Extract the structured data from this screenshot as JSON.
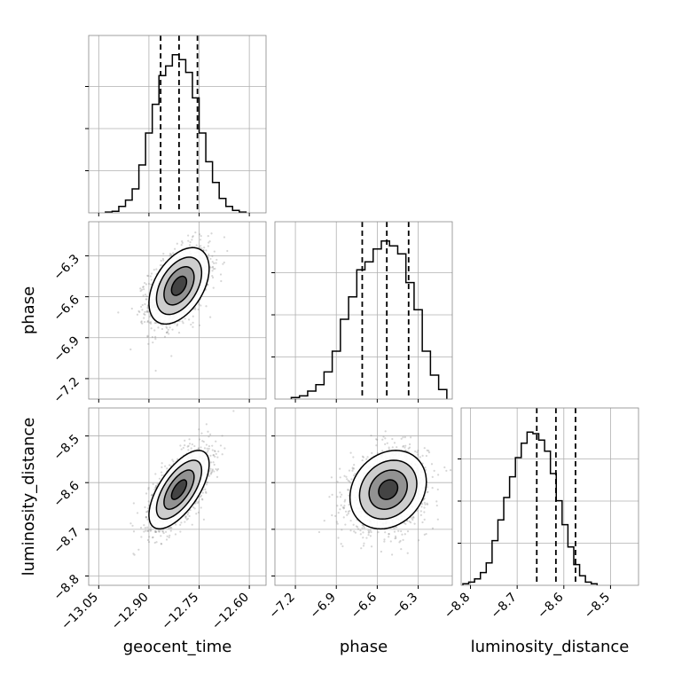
{
  "chart_data": {
    "type": "corner",
    "parameters": [
      "geocent_time",
      "phase",
      "luminosity_distance"
    ],
    "axes": {
      "geocent_time": {
        "label": "geocent_time",
        "range": [
          -13.08,
          -12.55
        ],
        "ticks": [
          -13.05,
          -12.9,
          -12.75,
          -12.6
        ],
        "tick_labels": [
          "−13.05",
          "−12.90",
          "−12.75",
          "−12.60"
        ]
      },
      "phase": {
        "label": "phase",
        "range": [
          -7.35,
          -6.05
        ],
        "ticks": [
          -7.2,
          -6.9,
          -6.6,
          -6.3
        ],
        "tick_labels": [
          "−7.2",
          "−6.9",
          "−6.6",
          "−6.3"
        ]
      },
      "luminosity_distance": {
        "label": "luminosity_distance",
        "range": [
          -8.82,
          -8.44
        ],
        "ticks": [
          -8.8,
          -8.7,
          -8.6,
          -8.5
        ],
        "tick_labels": [
          "−8.8",
          "−8.7",
          "−8.6",
          "−8.5"
        ]
      }
    },
    "stats": {
      "geocent_time": {
        "mean": -12.81,
        "std": 0.045,
        "quantiles": [
          -12.865,
          -12.81,
          -12.755
        ]
      },
      "phase": {
        "mean": -6.52,
        "std": 0.14,
        "quantiles": [
          -6.71,
          -6.53,
          -6.37
        ]
      },
      "luminosity_distance": {
        "mean": -8.615,
        "std": 0.042,
        "quantiles": [
          -8.658,
          -8.617,
          -8.575
        ]
      }
    },
    "correlations": {
      "geocent_time|phase": 0.45,
      "geocent_time|luminosity_distance": 0.65,
      "phase|luminosity_distance": 0.2
    },
    "histograms": {
      "geocent_time": {
        "bin_width": 0.02,
        "bins": [
          [
            -13.02,
            0.005
          ],
          [
            -13.0,
            0.01
          ],
          [
            -12.98,
            0.04
          ],
          [
            -12.96,
            0.08
          ],
          [
            -12.94,
            0.15
          ],
          [
            -12.92,
            0.3
          ],
          [
            -12.9,
            0.5
          ],
          [
            -12.88,
            0.68
          ],
          [
            -12.86,
            0.86
          ],
          [
            -12.84,
            0.92
          ],
          [
            -12.82,
            0.99
          ],
          [
            -12.8,
            0.96
          ],
          [
            -12.78,
            0.88
          ],
          [
            -12.76,
            0.72
          ],
          [
            -12.74,
            0.5
          ],
          [
            -12.72,
            0.32
          ],
          [
            -12.7,
            0.19
          ],
          [
            -12.68,
            0.09
          ],
          [
            -12.66,
            0.04
          ],
          [
            -12.64,
            0.015
          ],
          [
            -12.62,
            0.005
          ]
        ]
      },
      "phase": {
        "bin_width": 0.06,
        "bins": [
          [
            -7.2,
            0.01
          ],
          [
            -7.14,
            0.02
          ],
          [
            -7.08,
            0.05
          ],
          [
            -7.02,
            0.09
          ],
          [
            -6.96,
            0.17
          ],
          [
            -6.9,
            0.3
          ],
          [
            -6.84,
            0.5
          ],
          [
            -6.78,
            0.64
          ],
          [
            -6.72,
            0.81
          ],
          [
            -6.66,
            0.86
          ],
          [
            -6.6,
            0.94
          ],
          [
            -6.54,
            0.99
          ],
          [
            -6.48,
            0.96
          ],
          [
            -6.42,
            0.91
          ],
          [
            -6.36,
            0.73
          ],
          [
            -6.3,
            0.56
          ],
          [
            -6.24,
            0.3
          ],
          [
            -6.18,
            0.15
          ],
          [
            -6.12,
            0.06
          ]
        ]
      },
      "luminosity_distance": {
        "bin_width": 0.0125,
        "bins": [
          [
            -8.81,
            0.01
          ],
          [
            -8.7975,
            0.02
          ],
          [
            -8.785,
            0.04
          ],
          [
            -8.7725,
            0.08
          ],
          [
            -8.76,
            0.14
          ],
          [
            -8.7475,
            0.28
          ],
          [
            -8.735,
            0.41
          ],
          [
            -8.7225,
            0.55
          ],
          [
            -8.71,
            0.68
          ],
          [
            -8.6975,
            0.8
          ],
          [
            -8.685,
            0.89
          ],
          [
            -8.6725,
            0.96
          ],
          [
            -8.66,
            0.95
          ],
          [
            -8.6475,
            0.91
          ],
          [
            -8.635,
            0.84
          ],
          [
            -8.6225,
            0.7
          ],
          [
            -8.61,
            0.53
          ],
          [
            -8.5975,
            0.38
          ],
          [
            -8.585,
            0.24
          ],
          [
            -8.5725,
            0.13
          ],
          [
            -8.56,
            0.06
          ],
          [
            -8.5475,
            0.02
          ],
          [
            -8.535,
            0.01
          ]
        ]
      }
    },
    "contour_levels_sigma": [
      0.5,
      1.0,
      1.5,
      2.0
    ],
    "grid": true
  }
}
